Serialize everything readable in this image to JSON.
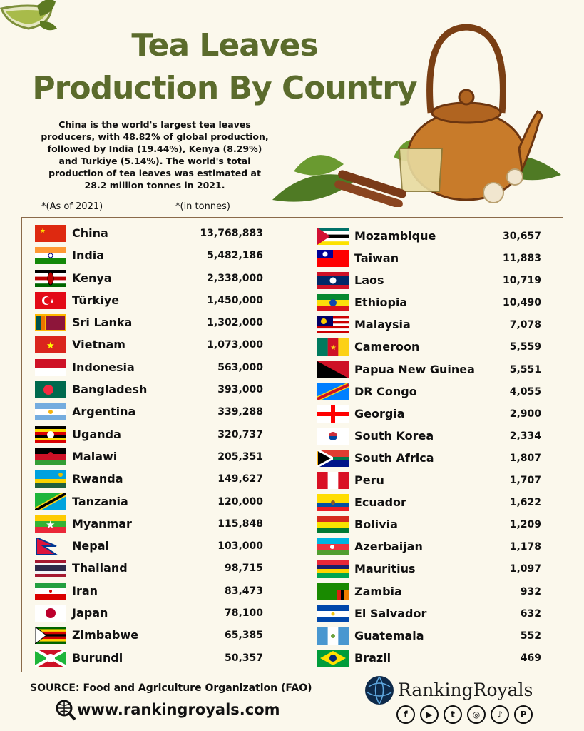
{
  "header": {
    "title_line1": "Tea Leaves",
    "title_line2": "Production By Country",
    "intro": "China is the world's largest tea leaves producers, with 48.82% of global production, followed by India (19.44%), Kenya (8.29%) and Turkiye (5.14%). The world's total production of tea leaves was estimated at 28.2 million tonnes in 2021.",
    "as_of": "*(As of 2021)",
    "units": "*(in tonnes)"
  },
  "left_rows": [
    {
      "country": "China",
      "value": "13,768,883",
      "flag": "china"
    },
    {
      "country": "India",
      "value": "5,482,186",
      "flag": "india"
    },
    {
      "country": "Kenya",
      "value": "2,338,000",
      "flag": "kenya"
    },
    {
      "country": "Türkiye",
      "value": "1,450,000",
      "flag": "turkiye"
    },
    {
      "country": "Sri Lanka",
      "value": "1,302,000",
      "flag": "sri-lanka"
    },
    {
      "country": "Vietnam",
      "value": "1,073,000",
      "flag": "vietnam"
    },
    {
      "country": "Indonesia",
      "value": "563,000",
      "flag": "indonesia"
    },
    {
      "country": "Bangladesh",
      "value": "393,000",
      "flag": "bangladesh"
    },
    {
      "country": "Argentina",
      "value": "339,288",
      "flag": "argentina"
    },
    {
      "country": "Uganda",
      "value": "320,737",
      "flag": "uganda"
    },
    {
      "country": "Malawi",
      "value": "205,351",
      "flag": "malawi"
    },
    {
      "country": "Rwanda",
      "value": "149,627",
      "flag": "rwanda"
    },
    {
      "country": "Tanzania",
      "value": "120,000",
      "flag": "tanzania"
    },
    {
      "country": "Myanmar",
      "value": "115,848",
      "flag": "myanmar"
    },
    {
      "country": "Nepal",
      "value": "103,000",
      "flag": "nepal"
    },
    {
      "country": "Thailand",
      "value": "98,715",
      "flag": "thailand"
    },
    {
      "country": "Iran",
      "value": "83,473",
      "flag": "iran"
    },
    {
      "country": "Japan",
      "value": "78,100",
      "flag": "japan"
    },
    {
      "country": "Zimbabwe",
      "value": "65,385",
      "flag": "zimbabwe"
    },
    {
      "country": "Burundi",
      "value": "50,357",
      "flag": "burundi"
    }
  ],
  "right_rows": [
    {
      "country": "Mozambique",
      "value": "30,657",
      "flag": "mozambique"
    },
    {
      "country": "Taiwan",
      "value": "11,883",
      "flag": "taiwan"
    },
    {
      "country": "Laos",
      "value": "10,719",
      "flag": "laos"
    },
    {
      "country": "Ethiopia",
      "value": "10,490",
      "flag": "ethiopia"
    },
    {
      "country": "Malaysia",
      "value": "7,078",
      "flag": "malaysia"
    },
    {
      "country": "Cameroon",
      "value": "5,559",
      "flag": "cameroon"
    },
    {
      "country": "Papua New Guinea",
      "value": "5,551",
      "flag": "papua-new-guinea"
    },
    {
      "country": "DR Congo",
      "value": "4,055",
      "flag": "dr-congo"
    },
    {
      "country": "Georgia",
      "value": "2,900",
      "flag": "georgia"
    },
    {
      "country": "South Korea",
      "value": "2,334",
      "flag": "south-korea"
    },
    {
      "country": "South Africa",
      "value": "1,807",
      "flag": "south-africa"
    },
    {
      "country": "Peru",
      "value": "1,707",
      "flag": "peru"
    },
    {
      "country": "Ecuador",
      "value": "1,622",
      "flag": "ecuador"
    },
    {
      "country": "Bolivia",
      "value": "1,209",
      "flag": "bolivia"
    },
    {
      "country": "Azerbaijan",
      "value": "1,178",
      "flag": "azerbaijan"
    },
    {
      "country": "Mauritius",
      "value": "1,097",
      "flag": "mauritius"
    },
    {
      "country": "Zambia",
      "value": "932",
      "flag": "zambia"
    },
    {
      "country": "El Salvador",
      "value": "632",
      "flag": "el-salvador"
    },
    {
      "country": "Guatemala",
      "value": "552",
      "flag": "guatemala"
    },
    {
      "country": "Brazil",
      "value": "469",
      "flag": "brazil"
    }
  ],
  "footer": {
    "source": "SOURCE: Food and Agriculture Organization (FAO)",
    "website": "www.rankingroyals.com",
    "brand": "RankingRoyals",
    "socials": [
      {
        "icon": "facebook-icon",
        "glyph": "f"
      },
      {
        "icon": "youtube-icon",
        "glyph": "▶"
      },
      {
        "icon": "twitter-icon",
        "glyph": "t"
      },
      {
        "icon": "instagram-icon",
        "glyph": "◎"
      },
      {
        "icon": "tiktok-icon",
        "glyph": "♪"
      },
      {
        "icon": "pinterest-icon",
        "glyph": "P"
      }
    ]
  },
  "colors": {
    "title": "#5b6b2c",
    "background": "#fbf8ec",
    "table_border": "#8a6a4a"
  }
}
